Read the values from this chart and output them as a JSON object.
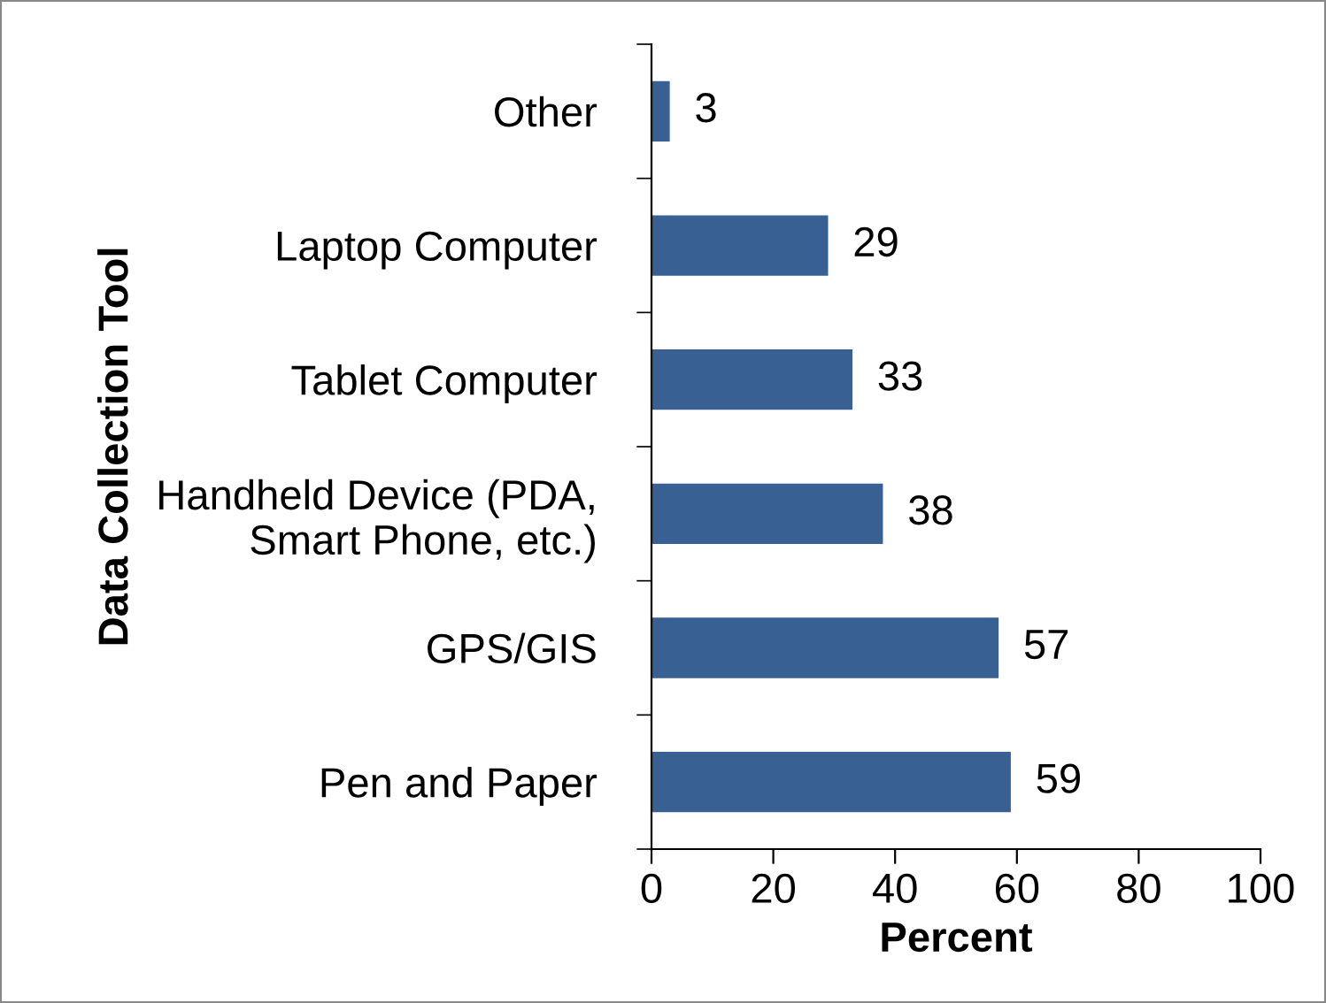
{
  "chart_data": {
    "type": "bar",
    "orientation": "horizontal",
    "categories": [
      "Other",
      "Laptop Computer",
      "Tablet Computer",
      "Handheld Device (PDA,\nSmart Phone, etc.)",
      "GPS/GIS",
      "Pen and Paper"
    ],
    "values": [
      3,
      29,
      33,
      38,
      57,
      59
    ],
    "color": "#386092",
    "xlabel": "Percent",
    "ylabel": "Data Collection Tool",
    "xlim": [
      0,
      100
    ],
    "xticks": [
      0,
      20,
      40,
      60,
      80,
      100
    ],
    "data_labels": true,
    "grid": false,
    "legend": false
  }
}
